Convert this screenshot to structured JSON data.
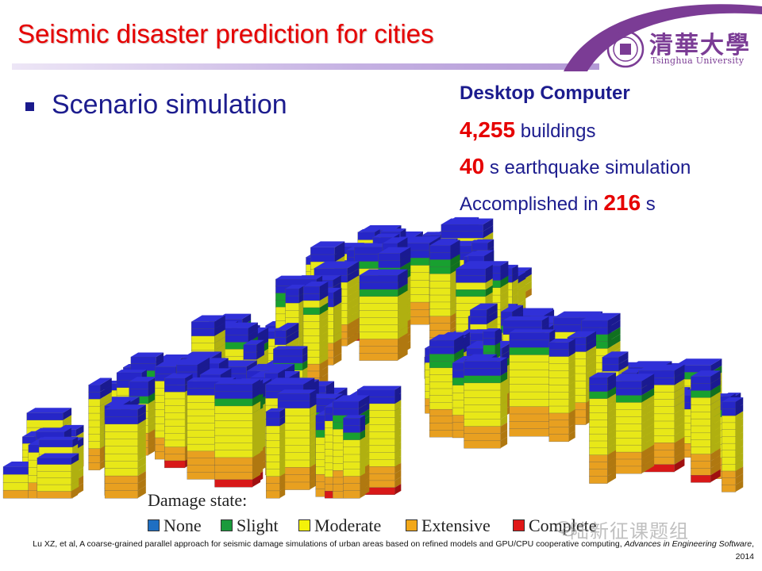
{
  "slide": {
    "title": "Seismic disaster prediction for cities",
    "bullet": "Scenario simulation"
  },
  "logo": {
    "chinese": "清華大學",
    "english": "Tsinghua University"
  },
  "stats": {
    "heading": "Desktop Computer",
    "buildings_value": "4,255",
    "buildings_label": " buildings",
    "duration_value": "40",
    "duration_label": " s earthquake simulation",
    "accomplished_prefix": "Accomplished in ",
    "accomplished_value": "216",
    "accomplished_suffix": " s"
  },
  "legend": {
    "title": "Damage state:",
    "items": [
      {
        "label": "None",
        "color": "#1f6fc2"
      },
      {
        "label": "Slight",
        "color": "#1a9a3c"
      },
      {
        "label": "Moderate",
        "color": "#f4f20a"
      },
      {
        "label": "Extensive",
        "color": "#f2a81a"
      },
      {
        "label": "Complete",
        "color": "#e01818"
      }
    ]
  },
  "watermark": "陆新征课题组",
  "reference": {
    "text": "Lu XZ, et al, A coarse-grained parallel approach for seismic damage simulations of urban areas based on refined models and GPU/CPU cooperative computing, ",
    "journal": "Advances in Engineering Software",
    "year": ", 2014"
  }
}
